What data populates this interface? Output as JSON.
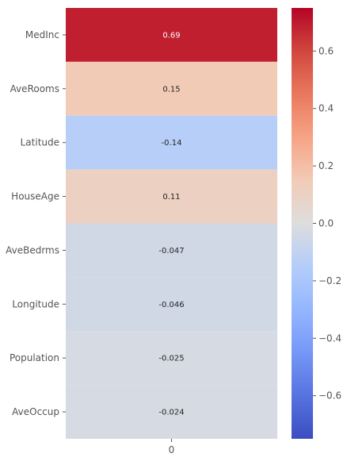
{
  "chart_data": {
    "type": "heatmap",
    "title": "",
    "xlabel": "",
    "ylabel": "",
    "columns": [
      "0"
    ],
    "rows": [
      "MedInc",
      "AveRooms",
      "Latitude",
      "HouseAge",
      "AveBedrms",
      "Longitude",
      "Population",
      "AveOccup"
    ],
    "values": [
      0.69,
      0.15,
      -0.14,
      0.11,
      -0.047,
      -0.046,
      -0.025,
      -0.024
    ],
    "value_labels": [
      "0.69",
      "0.15",
      "-0.14",
      "0.11",
      "-0.047",
      "-0.046",
      "-0.025",
      "-0.024"
    ],
    "colormap": "coolwarm",
    "vmin": -0.75,
    "vmax": 0.75,
    "colorbar": {
      "position": "right",
      "ticks": [
        -0.6,
        -0.4,
        -0.2,
        0.0,
        0.2,
        0.4,
        0.6
      ],
      "tick_labels": [
        "−0.6",
        "−0.4",
        "−0.2",
        "0.0",
        "0.2",
        "0.4",
        "0.6"
      ]
    },
    "colors": {
      "low": "#3b4cc0",
      "mid": "#dddddd",
      "high": "#b40426",
      "label_light": "#ffffff",
      "label_dark": "#262626"
    }
  }
}
